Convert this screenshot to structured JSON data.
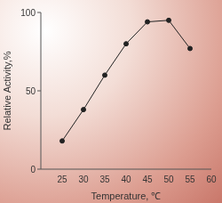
{
  "chart_data": {
    "type": "line",
    "x_label": "Temperature, ℃",
    "y_label": "Relative Activity,%",
    "x": [
      25,
      30,
      35,
      40,
      45,
      50,
      55
    ],
    "values": [
      18,
      38,
      60,
      80,
      94,
      95,
      77
    ],
    "color": "#222222",
    "marker": "circle",
    "line_style": "solid",
    "xlim": [
      20,
      60
    ],
    "xticks": [
      25,
      30,
      35,
      40,
      45,
      50,
      55,
      60
    ],
    "ylim": [
      0,
      100
    ],
    "yticks": [
      0,
      50,
      100
    ],
    "grid": false
  }
}
